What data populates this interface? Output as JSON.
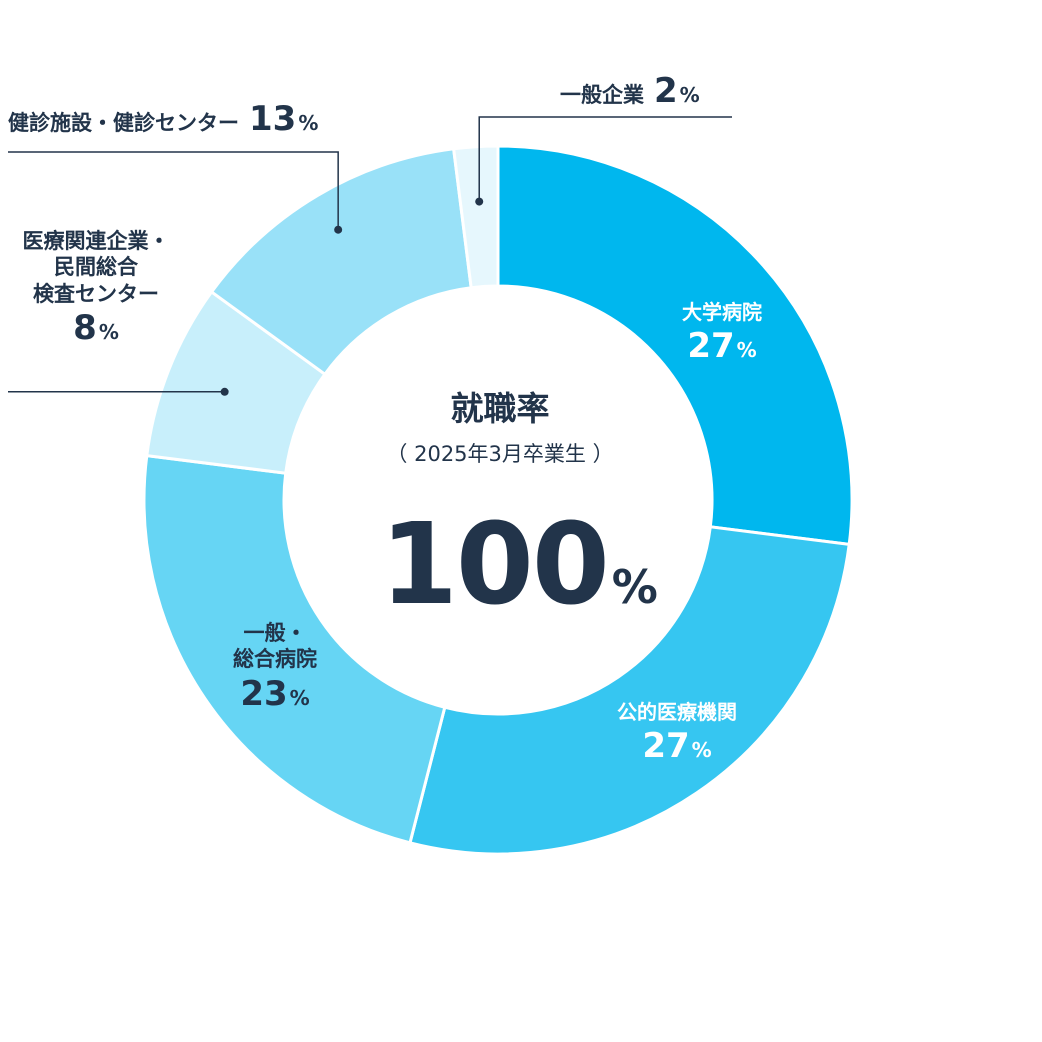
{
  "chart_data": {
    "type": "pie",
    "title": "就職率",
    "subtitle": "（ 2025年3月卒業生 ）",
    "total": {
      "value": "100",
      "unit": "%"
    },
    "slices": [
      {
        "key": "daigaku",
        "lines": [
          "大学病院"
        ],
        "value": 27,
        "unit": "%",
        "color": "#00b7ee"
      },
      {
        "key": "koteki",
        "lines": [
          "公的医療機関"
        ],
        "value": 27,
        "unit": "%",
        "color": "#36c6f1"
      },
      {
        "key": "ippan",
        "lines": [
          "一般・",
          "総合病院"
        ],
        "value": 23,
        "unit": "%",
        "color": "#66d5f4"
      },
      {
        "key": "kanren",
        "lines": [
          "医療関連企業・",
          "民間総合",
          "検査センター"
        ],
        "value": 8,
        "unit": "%",
        "color": "#c8effb"
      },
      {
        "key": "kenshin",
        "lines": [
          "健診施設・健診センター"
        ],
        "value": 13,
        "unit": "%",
        "color": "#99e1f8"
      },
      {
        "key": "kigyo",
        "lines": [
          "一般企業"
        ],
        "value": 2,
        "unit": "%",
        "color": "#e6f7fd"
      }
    ]
  }
}
